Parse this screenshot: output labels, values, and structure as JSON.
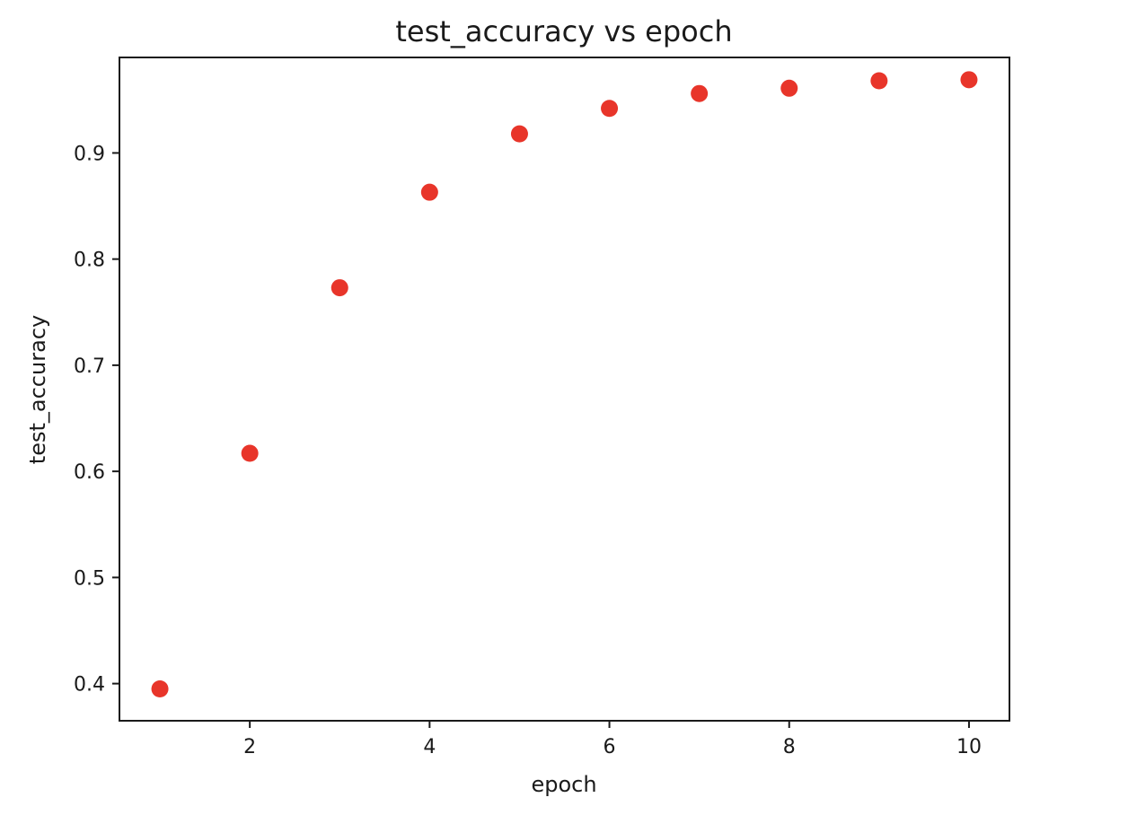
{
  "chart_data": {
    "type": "scatter",
    "title": "test_accuracy vs epoch",
    "xlabel": "epoch",
    "ylabel": "test_accuracy",
    "xlim": [
      0.55,
      10.45
    ],
    "ylim": [
      0.365,
      0.99
    ],
    "xticks": [
      2,
      4,
      6,
      8,
      10
    ],
    "xtick_labels": [
      "2",
      "4",
      "6",
      "8",
      "10"
    ],
    "yticks": [
      0.4,
      0.5,
      0.6,
      0.7,
      0.8,
      0.9
    ],
    "ytick_labels": [
      "0.4",
      "0.5",
      "0.6",
      "0.7",
      "0.8",
      "0.9"
    ],
    "grid": false,
    "marker_color": "#e8352a",
    "x": [
      1,
      2,
      3,
      4,
      5,
      6,
      7,
      8,
      9,
      10
    ],
    "y": [
      0.395,
      0.617,
      0.773,
      0.863,
      0.918,
      0.942,
      0.956,
      0.961,
      0.968,
      0.969
    ]
  }
}
